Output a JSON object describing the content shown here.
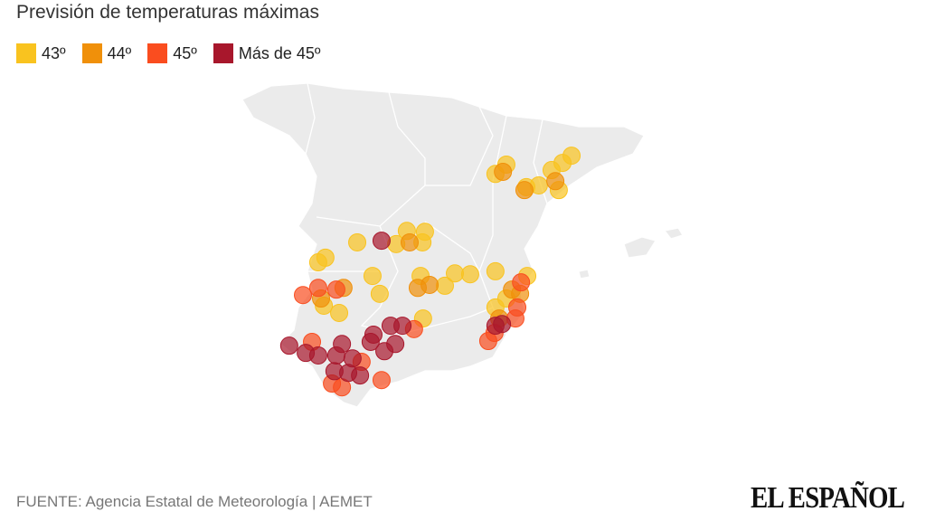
{
  "header": {
    "title": "Previsión de temperaturas máximas"
  },
  "legend": [
    {
      "label": "43º",
      "color": "#f9c31f",
      "points": [
        [
          -1.25,
          41.63
        ],
        [
          -0.9,
          41.85
        ],
        [
          -0.26,
          41.32
        ],
        [
          0.14,
          41.36
        ],
        [
          0.78,
          41.25
        ],
        [
          0.55,
          41.72
        ],
        [
          0.9,
          41.89
        ],
        [
          1.19,
          42.06
        ],
        [
          -5.68,
          40.02
        ],
        [
          -4.43,
          39.98
        ],
        [
          -4.09,
          40.29
        ],
        [
          -3.51,
          40.27
        ],
        [
          -3.59,
          40.02
        ],
        [
          -5.19,
          39.23
        ],
        [
          -4.96,
          38.81
        ],
        [
          -3.65,
          39.23
        ],
        [
          -2.87,
          39.0
        ],
        [
          -2.55,
          39.29
        ],
        [
          -2.06,
          39.27
        ],
        [
          -6.7,
          39.66
        ],
        [
          -6.93,
          39.55
        ],
        [
          -6.26,
          38.36
        ],
        [
          -6.75,
          38.53
        ],
        [
          -3.57,
          38.23
        ],
        [
          -1.25,
          39.34
        ],
        [
          -0.23,
          39.23
        ],
        [
          -1.25,
          38.49
        ],
        [
          -0.9,
          38.7
        ]
      ]
    },
    {
      "label": "44º",
      "color": "#f0900a",
      "points": [
        [
          -1.01,
          41.68
        ],
        [
          -0.32,
          41.25
        ],
        [
          0.67,
          41.46
        ],
        [
          -4.0,
          40.02
        ],
        [
          -3.74,
          38.95
        ],
        [
          -3.36,
          39.02
        ],
        [
          -6.12,
          38.95
        ],
        [
          -6.84,
          38.7
        ],
        [
          -1.13,
          38.23
        ],
        [
          -0.72,
          38.91
        ],
        [
          -0.46,
          38.81
        ]
      ]
    },
    {
      "label": "45º",
      "color": "#fa4d1f",
      "points": [
        [
          -7.42,
          38.78
        ],
        [
          -6.93,
          38.95
        ],
        [
          -6.35,
          38.91
        ],
        [
          -0.43,
          39.08
        ],
        [
          -0.55,
          38.49
        ],
        [
          -0.61,
          38.23
        ],
        [
          -1.48,
          37.7
        ],
        [
          -1.28,
          37.89
        ],
        [
          -7.13,
          37.68
        ],
        [
          -4.9,
          36.78
        ],
        [
          -6.49,
          36.7
        ],
        [
          -3.86,
          37.98
        ],
        [
          -5.54,
          37.21
        ],
        [
          -6.17,
          36.61
        ]
      ]
    },
    {
      "label": "Más de 45º",
      "color": "#a8172c",
      "points": [
        [
          -4.9,
          40.06
        ],
        [
          -7.86,
          37.59
        ],
        [
          -7.33,
          37.42
        ],
        [
          -6.93,
          37.36
        ],
        [
          -6.17,
          37.63
        ],
        [
          -6.35,
          37.36
        ],
        [
          -5.83,
          37.29
        ],
        [
          -5.25,
          37.68
        ],
        [
          -4.81,
          37.46
        ],
        [
          -4.46,
          37.63
        ],
        [
          -4.23,
          38.06
        ],
        [
          -4.61,
          38.06
        ],
        [
          -5.16,
          37.85
        ],
        [
          -5.97,
          36.95
        ],
        [
          -6.41,
          36.99
        ],
        [
          -1.04,
          38.1
        ],
        [
          -1.25,
          38.06
        ],
        [
          -5.59,
          36.89
        ]
      ]
    }
  ],
  "footer": {
    "source": "FUENTE: Agencia Estatal de Meteorología | AEMET",
    "logo": "EL ESPAÑOL"
  }
}
